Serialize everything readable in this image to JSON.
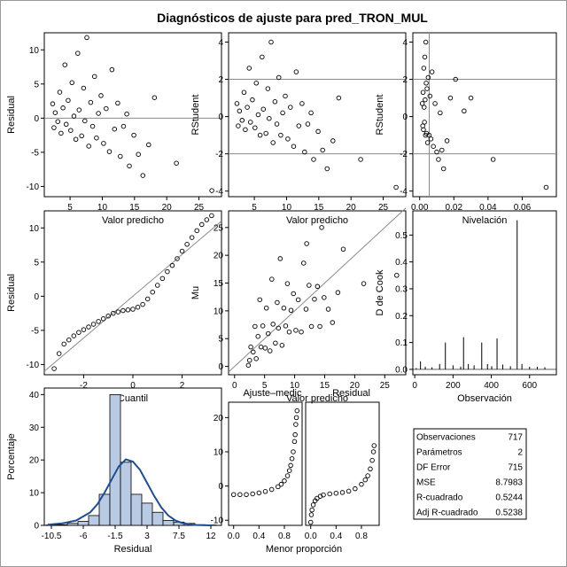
{
  "title": "Diagnósticos de ajuste para pred_TRON_MUL",
  "chart_data": [
    {
      "type": "scatter",
      "id": "p1",
      "xlabel": "Valor predicho",
      "ylabel": "Residual",
      "xlim": [
        1,
        28.5
      ],
      "ylim": [
        -11.5,
        12.5
      ],
      "xticks": [
        5,
        10,
        15,
        20,
        25
      ],
      "yticks": [
        -10,
        -5,
        0,
        5,
        10
      ],
      "hlines": [
        0
      ],
      "points": [
        [
          2.3,
          2.1
        ],
        [
          2.5,
          -1.4
        ],
        [
          2.7,
          0.8
        ],
        [
          3.1,
          -0.5
        ],
        [
          3.4,
          3.8
        ],
        [
          3.6,
          -2.2
        ],
        [
          3.9,
          1.5
        ],
        [
          4.2,
          7.8
        ],
        [
          4.4,
          -0.9
        ],
        [
          4.7,
          2.6
        ],
        [
          5.1,
          -1.8
        ],
        [
          5.3,
          5.2
        ],
        [
          5.6,
          0.3
        ],
        [
          5.9,
          -3.1
        ],
        [
          6.2,
          9.5
        ],
        [
          6.4,
          1.2
        ],
        [
          6.8,
          -2.6
        ],
        [
          7.1,
          4.4
        ],
        [
          7.3,
          -0.4
        ],
        [
          7.6,
          11.8
        ],
        [
          7.9,
          -4.1
        ],
        [
          8.2,
          2.3
        ],
        [
          8.5,
          -1.2
        ],
        [
          8.8,
          6.1
        ],
        [
          9.1,
          -2.9
        ],
        [
          9.4,
          0.7
        ],
        [
          9.8,
          3.3
        ],
        [
          10.2,
          -3.7
        ],
        [
          10.6,
          1.4
        ],
        [
          11.1,
          -4.9
        ],
        [
          11.5,
          7.1
        ],
        [
          11.9,
          -1.6
        ],
        [
          12.4,
          2.2
        ],
        [
          12.8,
          -5.6
        ],
        [
          13.3,
          -1.2
        ],
        [
          13.8,
          0.6
        ],
        [
          14.2,
          -7.0
        ],
        [
          14.9,
          -2.5
        ],
        [
          15.6,
          -5.3
        ],
        [
          16.3,
          -8.4
        ],
        [
          17.2,
          -3.9
        ],
        [
          18.1,
          3.0
        ],
        [
          21.5,
          -6.6
        ],
        [
          27.0,
          -10.6
        ]
      ]
    },
    {
      "type": "scatter",
      "id": "p2",
      "xlabel": "Valor predicho",
      "ylabel": "RStudent",
      "xlim": [
        1,
        28.5
      ],
      "ylim": [
        -4.3,
        4.5
      ],
      "xticks": [
        5,
        10,
        15,
        20,
        25
      ],
      "yticks": [
        -4,
        -2,
        0,
        2,
        4
      ],
      "hlines": [
        -2,
        2
      ],
      "points": [
        [
          2.3,
          0.7
        ],
        [
          2.5,
          -0.5
        ],
        [
          2.7,
          0.3
        ],
        [
          3.1,
          -0.2
        ],
        [
          3.4,
          1.3
        ],
        [
          3.6,
          -0.7
        ],
        [
          3.9,
          0.5
        ],
        [
          4.2,
          2.6
        ],
        [
          4.4,
          -0.3
        ],
        [
          4.7,
          0.9
        ],
        [
          5.1,
          -0.6
        ],
        [
          5.3,
          1.8
        ],
        [
          5.6,
          0.1
        ],
        [
          5.9,
          -1.0
        ],
        [
          6.2,
          3.2
        ],
        [
          6.4,
          0.4
        ],
        [
          6.8,
          -0.9
        ],
        [
          7.1,
          1.5
        ],
        [
          7.3,
          -0.1
        ],
        [
          7.6,
          4.0
        ],
        [
          7.9,
          -1.4
        ],
        [
          8.2,
          0.8
        ],
        [
          8.5,
          -0.4
        ],
        [
          8.8,
          2.1
        ],
        [
          9.1,
          -1.0
        ],
        [
          9.4,
          0.2
        ],
        [
          9.8,
          1.1
        ],
        [
          10.2,
          -1.2
        ],
        [
          10.6,
          0.5
        ],
        [
          11.1,
          -1.6
        ],
        [
          11.5,
          2.4
        ],
        [
          11.9,
          -0.5
        ],
        [
          12.4,
          0.7
        ],
        [
          12.8,
          -1.9
        ],
        [
          13.3,
          -0.4
        ],
        [
          13.8,
          0.2
        ],
        [
          14.2,
          -2.3
        ],
        [
          14.9,
          -0.8
        ],
        [
          15.6,
          -1.8
        ],
        [
          16.3,
          -2.8
        ],
        [
          17.2,
          -1.3
        ],
        [
          18.1,
          1.0
        ],
        [
          21.5,
          -2.3
        ],
        [
          27.0,
          -3.8
        ]
      ]
    },
    {
      "type": "scatter",
      "id": "p3",
      "xlabel": "Nivelación",
      "ylabel": "RStudent",
      "xlim": [
        -0.004,
        0.08
      ],
      "ylim": [
        -4.3,
        4.5
      ],
      "xticks": [
        0,
        0.02,
        0.04,
        0.06
      ],
      "xtick_labels": [
        "0.00",
        "0.02",
        "0.04",
        "0.06"
      ],
      "yticks": [
        -4,
        -2,
        0,
        2,
        4
      ],
      "hlines": [
        -2,
        2
      ],
      "vlines": [
        0.0056
      ],
      "points": [
        [
          0.0015,
          0.7
        ],
        [
          0.0018,
          -0.5
        ],
        [
          0.002,
          1.3
        ],
        [
          0.0022,
          -0.7
        ],
        [
          0.0024,
          2.6
        ],
        [
          0.0026,
          0.5
        ],
        [
          0.0028,
          -0.3
        ],
        [
          0.003,
          3.2
        ],
        [
          0.0032,
          0.9
        ],
        [
          0.0034,
          -1.0
        ],
        [
          0.0036,
          4.0
        ],
        [
          0.0038,
          1.8
        ],
        [
          0.004,
          -0.9
        ],
        [
          0.0043,
          1.5
        ],
        [
          0.0046,
          -1.4
        ],
        [
          0.005,
          2.1
        ],
        [
          0.0055,
          -1.0
        ],
        [
          0.006,
          1.1
        ],
        [
          0.0066,
          -1.2
        ],
        [
          0.0072,
          2.4
        ],
        [
          0.008,
          -1.6
        ],
        [
          0.009,
          0.7
        ],
        [
          0.01,
          -1.9
        ],
        [
          0.011,
          -2.3
        ],
        [
          0.012,
          0.2
        ],
        [
          0.013,
          -1.8
        ],
        [
          0.014,
          -2.8
        ],
        [
          0.016,
          -1.3
        ],
        [
          0.018,
          1.0
        ],
        [
          0.021,
          2.0
        ],
        [
          0.026,
          0.3
        ],
        [
          0.03,
          1.0
        ],
        [
          0.043,
          -2.3
        ],
        [
          0.074,
          -3.8
        ]
      ]
    },
    {
      "type": "scatter",
      "id": "p4",
      "xlabel": "Cuantil",
      "ylabel": "Residual",
      "xlim": [
        -3.6,
        3.6
      ],
      "ylim": [
        -11.5,
        12.5
      ],
      "xticks": [
        -2,
        0,
        2
      ],
      "yticks": [
        -10,
        -5,
        0,
        5,
        10
      ],
      "reference_line": [
        [
          -3.6,
          -11.0
        ],
        [
          3.6,
          11.0
        ]
      ],
      "points": [
        [
          -3.2,
          -10.6
        ],
        [
          -3.0,
          -8.4
        ],
        [
          -2.8,
          -7.0
        ],
        [
          -2.6,
          -6.4
        ],
        [
          -2.4,
          -5.8
        ],
        [
          -2.2,
          -5.3
        ],
        [
          -2.0,
          -4.9
        ],
        [
          -1.8,
          -4.5
        ],
        [
          -1.6,
          -4.1
        ],
        [
          -1.4,
          -3.7
        ],
        [
          -1.2,
          -3.3
        ],
        [
          -1.0,
          -2.9
        ],
        [
          -0.8,
          -2.5
        ],
        [
          -0.6,
          -2.3
        ],
        [
          -0.4,
          -2.1
        ],
        [
          -0.2,
          -2.0
        ],
        [
          0.0,
          -1.9
        ],
        [
          0.2,
          -1.6
        ],
        [
          0.4,
          -1.2
        ],
        [
          0.6,
          -0.4
        ],
        [
          0.8,
          0.6
        ],
        [
          1.0,
          1.6
        ],
        [
          1.2,
          2.6
        ],
        [
          1.4,
          3.6
        ],
        [
          1.6,
          4.5
        ],
        [
          1.8,
          5.5
        ],
        [
          2.0,
          6.6
        ],
        [
          2.2,
          7.6
        ],
        [
          2.4,
          8.6
        ],
        [
          2.6,
          9.6
        ],
        [
          2.8,
          10.5
        ],
        [
          3.0,
          11.2
        ],
        [
          3.2,
          11.8
        ]
      ]
    },
    {
      "type": "scatter",
      "id": "p5",
      "xlabel": "Valor predicho",
      "ylabel": "Mu",
      "xlim": [
        -1,
        28.5
      ],
      "ylim": [
        -1.5,
        28
      ],
      "xticks": [
        0,
        5,
        10,
        15,
        20,
        25
      ],
      "yticks": [
        0,
        5,
        10,
        15,
        20,
        25
      ],
      "reference_line": [
        [
          -1,
          -1
        ],
        [
          28.5,
          28.5
        ]
      ],
      "points": [
        [
          2.3,
          0.2
        ],
        [
          2.5,
          1.1
        ],
        [
          2.7,
          3.5
        ],
        [
          3.1,
          2.6
        ],
        [
          3.4,
          7.2
        ],
        [
          3.6,
          1.4
        ],
        [
          3.9,
          5.4
        ],
        [
          4.2,
          12.0
        ],
        [
          4.4,
          3.5
        ],
        [
          4.7,
          7.3
        ],
        [
          5.1,
          3.3
        ],
        [
          5.3,
          10.5
        ],
        [
          5.6,
          5.9
        ],
        [
          5.9,
          2.8
        ],
        [
          6.2,
          15.7
        ],
        [
          6.4,
          7.6
        ],
        [
          6.8,
          4.2
        ],
        [
          7.1,
          11.5
        ],
        [
          7.3,
          6.9
        ],
        [
          7.6,
          19.4
        ],
        [
          7.9,
          3.8
        ],
        [
          8.2,
          10.5
        ],
        [
          8.5,
          7.3
        ],
        [
          8.8,
          14.9
        ],
        [
          9.1,
          6.2
        ],
        [
          9.4,
          10.1
        ],
        [
          9.8,
          13.1
        ],
        [
          10.2,
          6.5
        ],
        [
          10.6,
          12.0
        ],
        [
          11.1,
          6.2
        ],
        [
          11.5,
          18.6
        ],
        [
          11.9,
          10.3
        ],
        [
          12.4,
          14.6
        ],
        [
          12.8,
          7.2
        ],
        [
          13.3,
          12.1
        ],
        [
          13.8,
          14.4
        ],
        [
          14.2,
          7.2
        ],
        [
          14.9,
          12.4
        ],
        [
          15.6,
          10.3
        ],
        [
          16.3,
          7.9
        ],
        [
          17.2,
          13.3
        ],
        [
          18.1,
          21.1
        ],
        [
          21.5,
          14.9
        ],
        [
          27.0,
          16.4
        ],
        [
          14.5,
          25.0
        ],
        [
          12.0,
          22.1
        ]
      ]
    },
    {
      "type": "bar",
      "id": "p6",
      "xlabel": "Observación",
      "ylabel": "D de Cook",
      "xlim": [
        -10,
        740
      ],
      "ylim": [
        -0.02,
        0.59
      ],
      "xticks": [
        0,
        200,
        400,
        600
      ],
      "yticks": [
        0,
        0.1,
        0.2,
        0.3,
        0.4,
        0.5
      ],
      "ytick_labels": [
        "0.0",
        "0.1",
        "0.2",
        "0.3",
        "0.4",
        "0.5"
      ],
      "x": [
        8,
        30,
        55,
        90,
        130,
        160,
        200,
        240,
        255,
        280,
        310,
        350,
        380,
        402,
        430,
        460,
        500,
        535,
        560,
        600,
        640,
        680
      ],
      "values": [
        0.005,
        0.03,
        0.01,
        0.008,
        0.02,
        0.1,
        0.015,
        0.01,
        0.12,
        0.02,
        0.015,
        0.1,
        0.02,
        0.012,
        0.115,
        0.018,
        0.012,
        0.555,
        0.02,
        0.01,
        0.01,
        0.008
      ]
    },
    {
      "type": "bar",
      "id": "p7",
      "xlabel": "Residual",
      "ylabel": "Porcentaje",
      "xlim": [
        -11.5,
        13.5
      ],
      "ylim": [
        0,
        42
      ],
      "xticks": [
        -10.5,
        -6,
        -1.5,
        3,
        7.5,
        12
      ],
      "yticks": [
        0,
        10,
        20,
        30,
        40
      ],
      "bin_width": 1.5,
      "categories": [
        -10.5,
        -9,
        -7.5,
        -6,
        -4.5,
        -3,
        -1.5,
        0,
        1.5,
        3,
        4.5,
        6,
        7.5,
        9,
        10.5,
        12
      ],
      "values": [
        0.1,
        0.2,
        0.6,
        1.2,
        3.0,
        9.5,
        40.0,
        19.3,
        9.5,
        6.8,
        4.0,
        1.5,
        1.0,
        0.6,
        0.2,
        0.1
      ],
      "curve": [
        [
          -11,
          0.2
        ],
        [
          -9,
          0.6
        ],
        [
          -7,
          1.5
        ],
        [
          -5,
          4
        ],
        [
          -4,
          6.5
        ],
        [
          -3,
          10
        ],
        [
          -2,
          14
        ],
        [
          -1,
          18
        ],
        [
          0,
          20.2
        ],
        [
          1,
          19.5
        ],
        [
          2,
          17
        ],
        [
          3,
          13
        ],
        [
          4,
          9
        ],
        [
          5,
          5.5
        ],
        [
          6,
          3
        ],
        [
          7,
          1.5
        ],
        [
          8,
          0.7
        ],
        [
          9,
          0.3
        ],
        [
          10,
          0.1
        ],
        [
          12,
          0.0
        ]
      ]
    },
    {
      "type": "scatter",
      "id": "p8",
      "panels": [
        "Ajuste–medic",
        "Residual"
      ],
      "xlabel": "Menor proporción",
      "xlim": [
        -0.08,
        1.08
      ],
      "ylim": [
        -11.5,
        24.5
      ],
      "xticks": [
        0.0,
        0.4,
        0.8
      ],
      "xtick_labels": [
        "0.0",
        "0.4",
        "0.8"
      ],
      "yticks": [
        -10,
        0,
        10,
        20
      ],
      "left_points": [
        [
          0.0,
          -2.5
        ],
        [
          0.1,
          -2.5
        ],
        [
          0.2,
          -2.5
        ],
        [
          0.3,
          -2.3
        ],
        [
          0.4,
          -2.0
        ],
        [
          0.5,
          -1.6
        ],
        [
          0.6,
          -1.0
        ],
        [
          0.7,
          -0.2
        ],
        [
          0.75,
          0.5
        ],
        [
          0.8,
          1.5
        ],
        [
          0.85,
          3.0
        ],
        [
          0.88,
          4.5
        ],
        [
          0.9,
          6.0
        ],
        [
          0.92,
          8.0
        ],
        [
          0.94,
          10.0
        ],
        [
          0.96,
          13.0
        ],
        [
          0.97,
          15.0
        ],
        [
          0.98,
          18.0
        ],
        [
          0.99,
          20.0
        ],
        [
          1.0,
          22.0
        ]
      ],
      "right_points": [
        [
          0.0,
          -10.6
        ],
        [
          0.01,
          -8.4
        ],
        [
          0.02,
          -7.0
        ],
        [
          0.04,
          -5.5
        ],
        [
          0.07,
          -4.3
        ],
        [
          0.1,
          -3.6
        ],
        [
          0.15,
          -3.0
        ],
        [
          0.2,
          -2.6
        ],
        [
          0.3,
          -2.3
        ],
        [
          0.4,
          -2.1
        ],
        [
          0.5,
          -1.9
        ],
        [
          0.6,
          -1.5
        ],
        [
          0.7,
          -0.8
        ],
        [
          0.8,
          0.5
        ],
        [
          0.86,
          1.8
        ],
        [
          0.9,
          3.0
        ],
        [
          0.94,
          5.0
        ],
        [
          0.97,
          7.5
        ],
        [
          0.99,
          10.0
        ],
        [
          1.0,
          11.8
        ]
      ]
    }
  ],
  "stats": {
    "rows": [
      {
        "label": "Observaciones",
        "value": "717"
      },
      {
        "label": "Parámetros",
        "value": "2"
      },
      {
        "label": "DF Error",
        "value": "715"
      },
      {
        "label": "MSE",
        "value": "8.7983"
      },
      {
        "label": "R-cuadrado",
        "value": "0.5244"
      },
      {
        "label": "Adj R-cuadrado",
        "value": "0.5238"
      }
    ]
  }
}
